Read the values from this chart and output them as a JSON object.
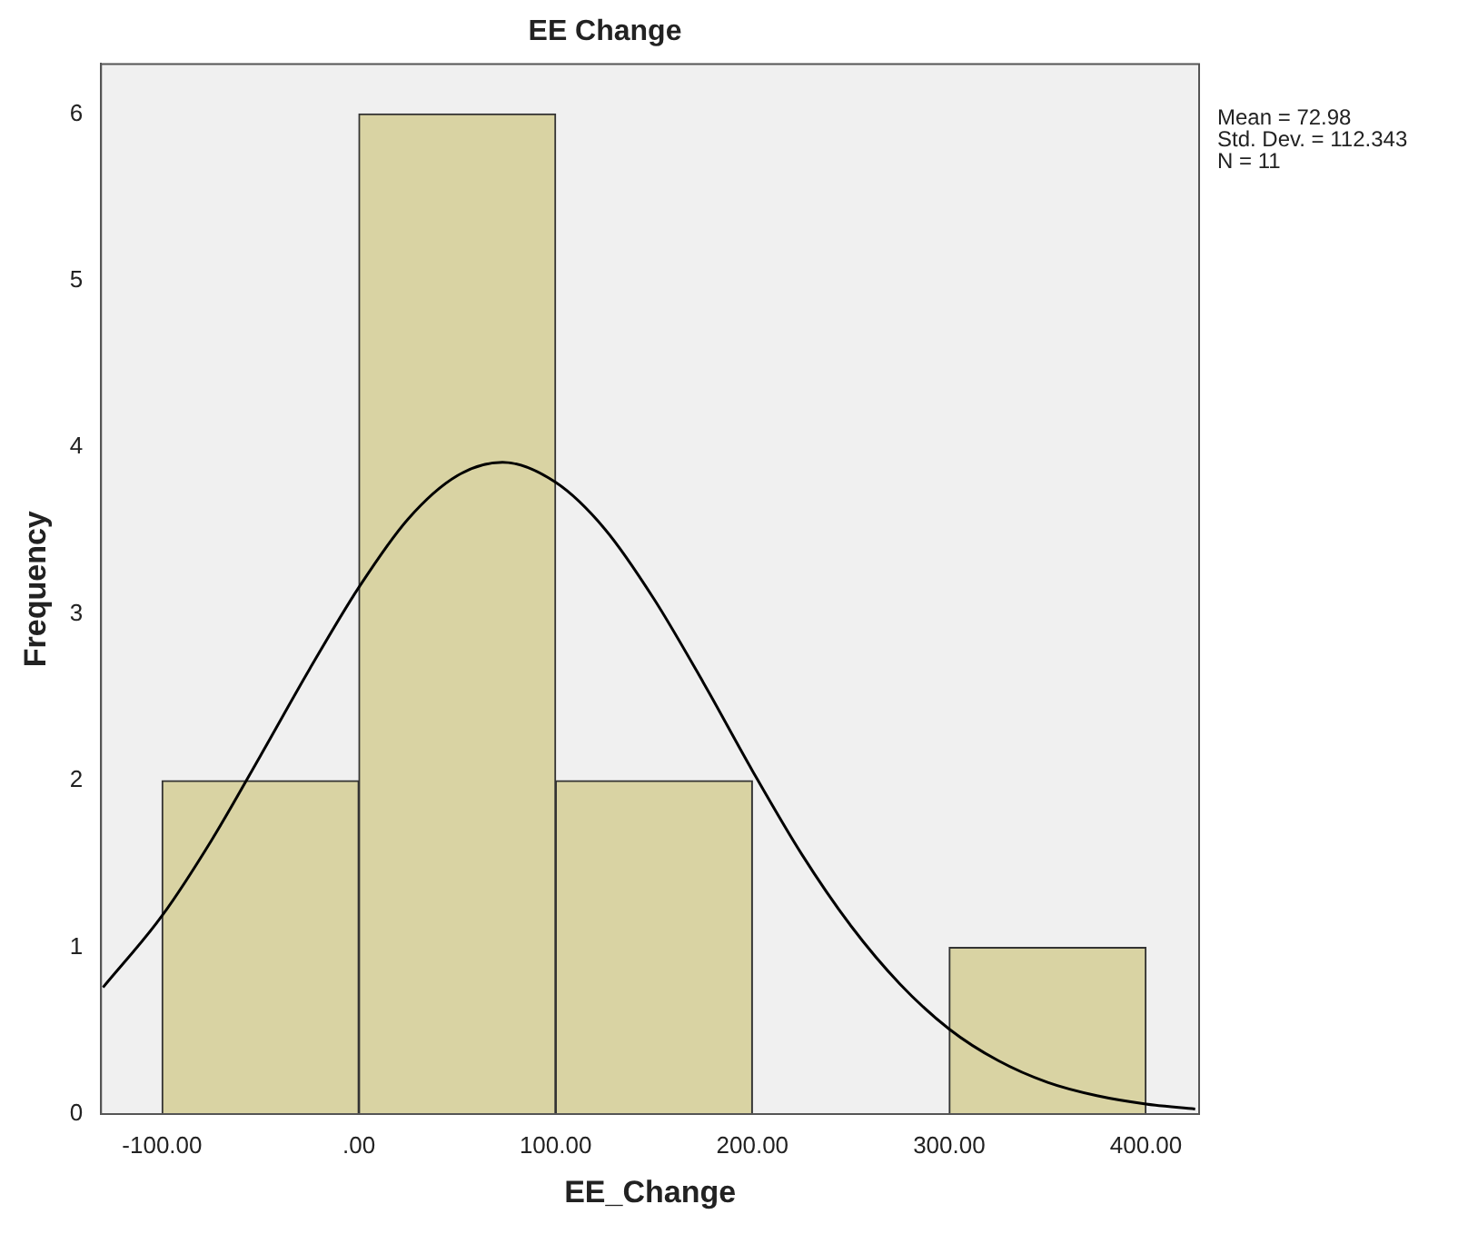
{
  "chart_data": {
    "type": "histogram",
    "title": "EE Change",
    "xlabel": "EE_Change",
    "ylabel": "Frequency",
    "bins": [
      -100,
      0,
      100,
      200,
      300,
      400
    ],
    "values": [
      2,
      6,
      2,
      0,
      1
    ],
    "color": "#d9d3a3",
    "series": [
      {
        "type": "line",
        "color": "#000000",
        "x": [
          -130,
          -100,
          -75,
          -50,
          -25,
          0,
          25,
          50,
          73,
          100,
          125,
          150,
          175,
          200,
          225,
          250,
          275,
          300,
          325,
          350,
          375,
          400,
          425
        ],
        "values": [
          0.76,
          1.19,
          1.64,
          2.15,
          2.67,
          3.16,
          3.57,
          3.83,
          3.91,
          3.79,
          3.51,
          3.09,
          2.59,
          2.06,
          1.56,
          1.13,
          0.78,
          0.51,
          0.32,
          0.19,
          0.11,
          0.06,
          0.03
        ]
      }
    ],
    "marker": "none",
    "grid": false,
    "legend": false,
    "xlim": [
      -131,
      427
    ],
    "xticks": [
      {
        "value": -100,
        "label": "-100.00"
      },
      {
        "value": 0,
        "label": ".00"
      },
      {
        "value": 100,
        "label": "100.00"
      },
      {
        "value": 200,
        "label": "200.00"
      },
      {
        "value": 300,
        "label": "300.00"
      },
      {
        "value": 400,
        "label": "400.00"
      }
    ],
    "ylim": [
      0,
      6.3
    ],
    "yticks": [
      0,
      1,
      2,
      3,
      4,
      5,
      6
    ],
    "annotations": [
      "Mean = 72.98",
      "Std. Dev. = 112.343",
      "N = 11"
    ]
  }
}
